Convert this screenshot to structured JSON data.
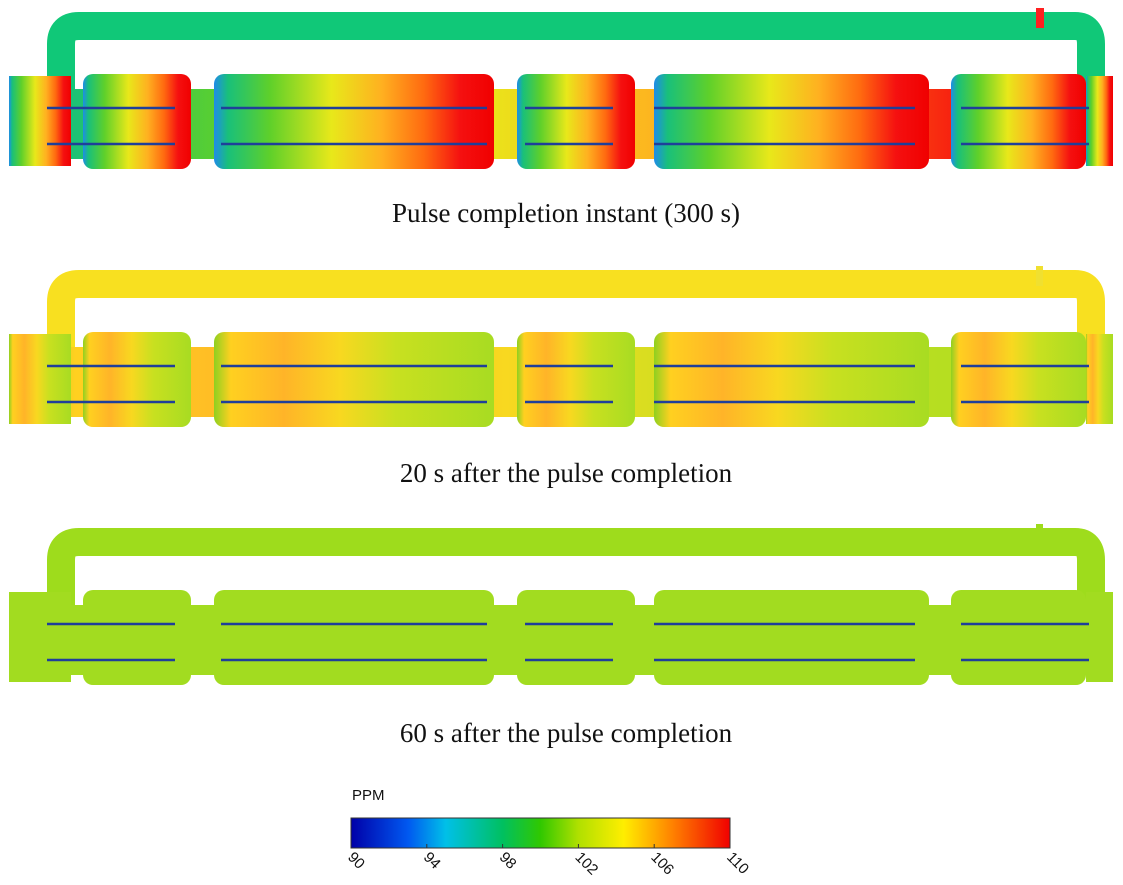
{
  "panels": [
    {
      "caption": "Pulse completion instant (300 s)"
    },
    {
      "caption": "20 s after the pulse completion"
    },
    {
      "caption": "60 s after the pulse completion"
    }
  ],
  "colorbar": {
    "label": "PPM",
    "range": [
      90,
      110
    ],
    "ticks": [
      90,
      94,
      98,
      102,
      106,
      110
    ]
  }
}
